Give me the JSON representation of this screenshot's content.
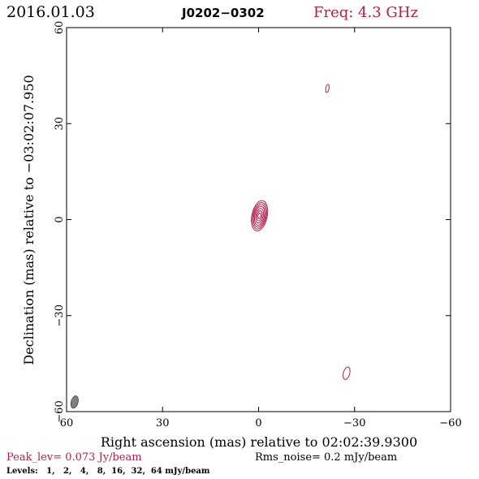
{
  "header": {
    "date": "2016.01.03",
    "source": "J0202−0302",
    "frequency": "Freq: 4.3 GHz"
  },
  "chart_data": {
    "type": "contour",
    "xlabel": "Right ascension (mas) relative to 02:02:39.9300",
    "ylabel": "Declination (mas) relative to −03:02:07.950",
    "xlim": [
      60,
      -60
    ],
    "ylim": [
      -60,
      60
    ],
    "x_ticks": [
      60,
      30,
      0,
      -30,
      -60
    ],
    "y_ticks": [
      60,
      30,
      0,
      -30,
      -60
    ],
    "x_tick_labels": [
      "60",
      "30",
      "0",
      "−30",
      "−60"
    ],
    "y_tick_labels": [
      "60",
      "30",
      "0",
      "−30",
      "−60"
    ],
    "contour_color": "#b0204a",
    "beam_color": "#808080",
    "beam": {
      "x": 57.5,
      "y": -57,
      "major_mas": 4.0,
      "minor_mas": 2.2,
      "pa_deg": 15
    },
    "components": [
      {
        "name": "core",
        "x": -0.3,
        "y": 1.2,
        "pa_deg": 12,
        "contours": [
          [
            4.8,
            2.4
          ],
          [
            4.2,
            2.1
          ],
          [
            3.6,
            1.8
          ],
          [
            3.0,
            1.5
          ],
          [
            2.3,
            1.15
          ],
          [
            1.6,
            0.8
          ],
          [
            0.9,
            0.45
          ]
        ]
      },
      {
        "name": "spot-north",
        "x": -21.5,
        "y": 41,
        "pa_deg": 10,
        "contours": [
          [
            1.3,
            0.5
          ]
        ]
      },
      {
        "name": "spot-south",
        "x": -27.5,
        "y": -48,
        "pa_deg": 15,
        "contours": [
          [
            2.0,
            1.0
          ]
        ]
      }
    ],
    "peak_level": "Peak_lev=  0.073 Jy/beam",
    "rms_noise": "Rms_noise=  0.2 mJy/beam",
    "levels": "Levels:   1,   2,   4,   8,  16,  32,  64 mJy/beam"
  }
}
